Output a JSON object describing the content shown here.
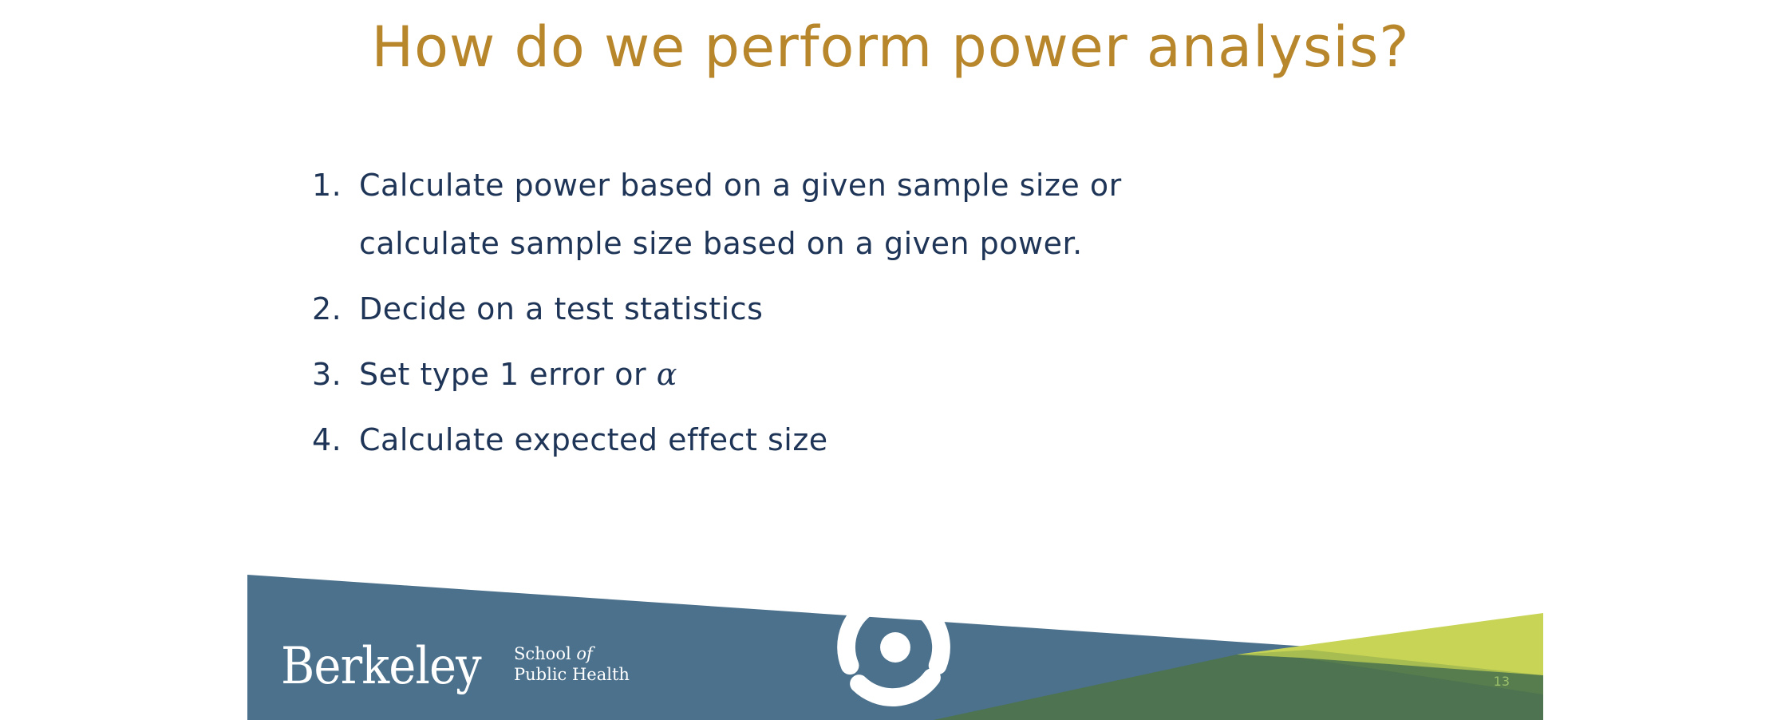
{
  "slide": {
    "title": "How do we perform power analysis?",
    "steps": [
      {
        "number": "1.",
        "text": "Calculate power based on a given sample size or calculate sample size based on a given power."
      },
      {
        "number": "2.",
        "text": "Decide on a test statistics"
      },
      {
        "number": "3.",
        "text": "Set type 1 error or ",
        "symbol": "α"
      },
      {
        "number": "4.",
        "text": "Calculate expected effect size"
      }
    ],
    "page_number": "13"
  },
  "footer": {
    "berkeley_wordmark": "Berkeley",
    "school_line1": "School ",
    "school_line1_italic": "of",
    "school_line2": "Public Health",
    "logo_icon": "school-of-public-health-swirl-icon"
  },
  "colors": {
    "title": "#b8862b",
    "body_text": "#1f3557",
    "footer_blue": "#4c718c",
    "footer_green": "#4d7350",
    "footer_lime": "#c8d455"
  }
}
